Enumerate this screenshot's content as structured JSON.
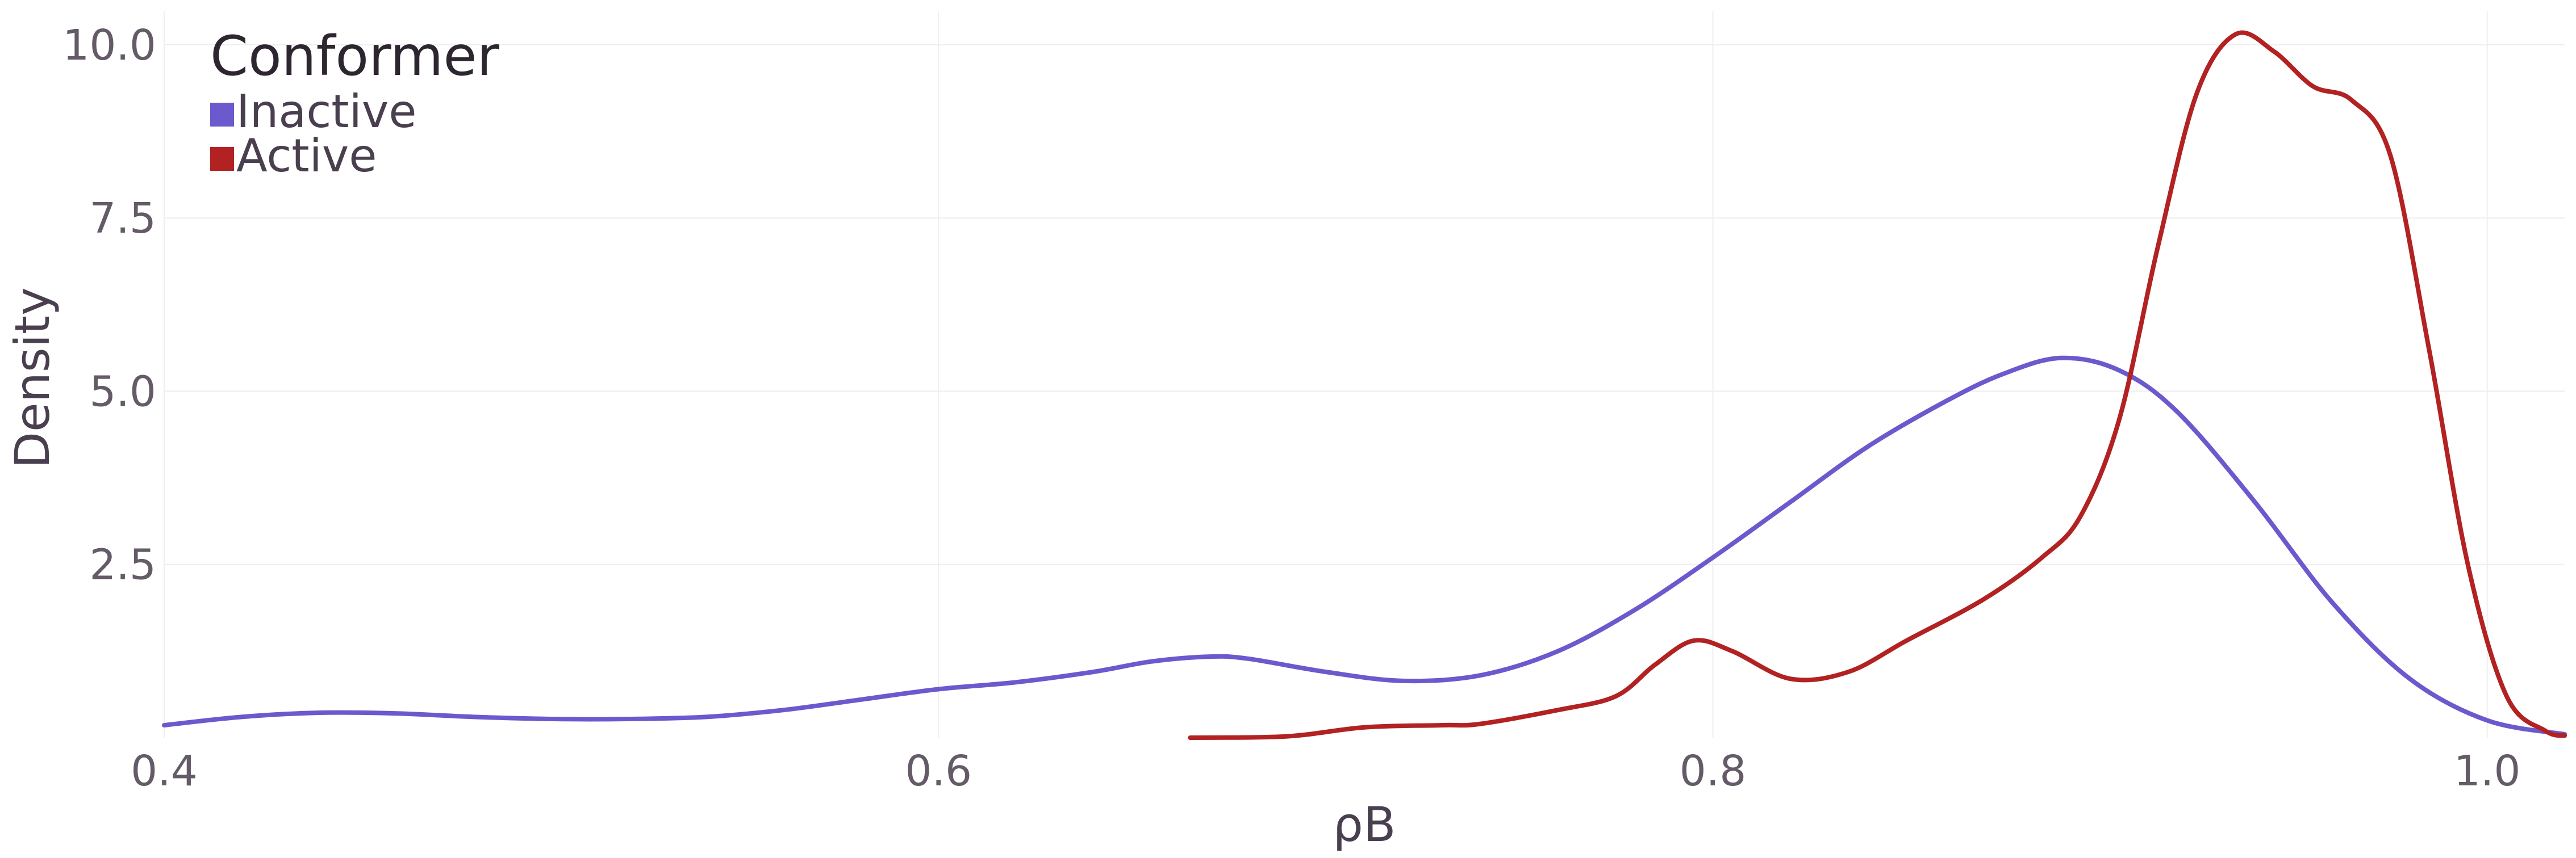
{
  "chart_data": {
    "type": "line",
    "title": "",
    "xlabel": "ρB",
    "ylabel": "Density",
    "xlim": [
      0.4,
      1.02
    ],
    "ylim": [
      0,
      10.4
    ],
    "x_ticks": [
      0.4,
      0.6,
      0.8,
      1.0
    ],
    "x_tick_labels": [
      "0.4",
      "0.6",
      "0.8",
      "1.0"
    ],
    "y_ticks": [
      2.5,
      5.0,
      7.5,
      10.0
    ],
    "y_tick_labels": [
      "2.5",
      "5.0",
      "7.5",
      "10.0"
    ],
    "grid": true,
    "legend": {
      "title": "Conformer",
      "position": "top-left",
      "entries": [
        {
          "label": "Inactive",
          "color": "#6a5acd"
        },
        {
          "label": "Active",
          "color": "#b22222"
        }
      ]
    },
    "series": [
      {
        "name": "Inactive",
        "color": "#6a5acd",
        "points": [
          [
            0.4,
            0.18
          ],
          [
            0.42,
            0.3
          ],
          [
            0.44,
            0.36
          ],
          [
            0.46,
            0.35
          ],
          [
            0.48,
            0.3
          ],
          [
            0.5,
            0.27
          ],
          [
            0.52,
            0.27
          ],
          [
            0.54,
            0.3
          ],
          [
            0.56,
            0.4
          ],
          [
            0.58,
            0.55
          ],
          [
            0.6,
            0.7
          ],
          [
            0.62,
            0.8
          ],
          [
            0.64,
            0.95
          ],
          [
            0.655,
            1.1
          ],
          [
            0.67,
            1.17
          ],
          [
            0.68,
            1.14
          ],
          [
            0.7,
            0.95
          ],
          [
            0.72,
            0.82
          ],
          [
            0.74,
            0.9
          ],
          [
            0.76,
            1.25
          ],
          [
            0.78,
            1.85
          ],
          [
            0.8,
            2.6
          ],
          [
            0.82,
            3.4
          ],
          [
            0.84,
            4.2
          ],
          [
            0.86,
            4.85
          ],
          [
            0.875,
            5.25
          ],
          [
            0.89,
            5.48
          ],
          [
            0.905,
            5.3
          ],
          [
            0.92,
            4.7
          ],
          [
            0.94,
            3.4
          ],
          [
            0.96,
            1.95
          ],
          [
            0.98,
            0.85
          ],
          [
            1.0,
            0.25
          ],
          [
            1.02,
            0.05
          ]
        ]
      },
      {
        "name": "Active",
        "color": "#b22222",
        "points": [
          [
            0.665,
            0.0
          ],
          [
            0.69,
            0.02
          ],
          [
            0.71,
            0.15
          ],
          [
            0.73,
            0.18
          ],
          [
            0.74,
            0.2
          ],
          [
            0.76,
            0.4
          ],
          [
            0.775,
            0.6
          ],
          [
            0.785,
            1.05
          ],
          [
            0.795,
            1.4
          ],
          [
            0.805,
            1.25
          ],
          [
            0.82,
            0.85
          ],
          [
            0.835,
            0.95
          ],
          [
            0.85,
            1.4
          ],
          [
            0.87,
            2.0
          ],
          [
            0.885,
            2.6
          ],
          [
            0.895,
            3.2
          ],
          [
            0.905,
            4.6
          ],
          [
            0.915,
            7.1
          ],
          [
            0.925,
            9.3
          ],
          [
            0.935,
            10.15
          ],
          [
            0.945,
            9.9
          ],
          [
            0.955,
            9.4
          ],
          [
            0.965,
            9.2
          ],
          [
            0.975,
            8.4
          ],
          [
            0.985,
            5.6
          ],
          [
            0.995,
            2.5
          ],
          [
            1.005,
            0.6
          ],
          [
            1.015,
            0.1
          ],
          [
            1.02,
            0.03
          ]
        ]
      }
    ]
  }
}
